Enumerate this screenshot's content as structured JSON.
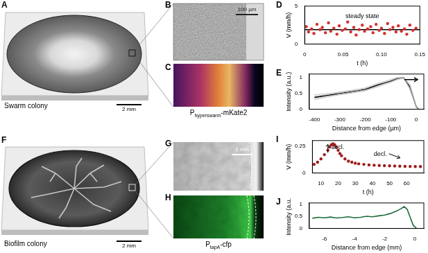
{
  "panels": [
    {
      "label": "A",
      "caption": "Swarm colony",
      "scale_bar": "2 mm"
    },
    {
      "label": "B",
      "scale_bar": "100 µm"
    },
    {
      "label": "C",
      "caption": {
        "base": "P",
        "sub": "hyperswarm",
        "suffix": "-mKate2"
      }
    },
    {
      "label": "F",
      "caption": "Biofilm colony",
      "scale_bar": "2 mm"
    },
    {
      "label": "G",
      "scale_bar": "1 mm"
    },
    {
      "label": "H",
      "caption": {
        "base": "P",
        "sub": "tapA",
        "suffix": "-cfp"
      }
    }
  ],
  "chart_data": [
    {
      "type": "scatter",
      "panel_label": "D",
      "x_label": "t (h)",
      "y_label": "V (mm/h)",
      "annotations": [
        "steady state"
      ],
      "x": [
        0.002,
        0.005,
        0.009,
        0.012,
        0.016,
        0.02,
        0.023,
        0.027,
        0.031,
        0.034,
        0.038,
        0.042,
        0.045,
        0.049,
        0.053,
        0.056,
        0.06,
        0.064,
        0.067,
        0.071,
        0.075,
        0.078,
        0.082,
        0.086,
        0.089,
        0.093,
        0.097,
        0.1,
        0.104,
        0.108,
        0.111,
        0.115,
        0.119,
        0.122,
        0.126,
        0.13,
        0.133,
        0.137,
        0.141,
        0.145
      ],
      "series": [
        {
          "color": "#d32f2f",
          "marker": "circle",
          "values": [
            2.3,
            1.6,
            2.0,
            1.4,
            2.6,
            1.9,
            2.2,
            1.5,
            2.8,
            1.7,
            2.1,
            1.3,
            2.4,
            1.8,
            2.0,
            2.9,
            1.6,
            2.2,
            1.2,
            1.9,
            2.5,
            1.7,
            2.0,
            2.3,
            1.5,
            2.6,
            1.8,
            2.1,
            1.4,
            2.7,
            1.9,
            2.2,
            1.6,
            2.4,
            1.7,
            2.0,
            1.3,
            2.5,
            1.8,
            2.1
          ]
        },
        {
          "type": "line",
          "color": "#000000",
          "line_style": "solid",
          "x": [
            0,
            0.15
          ],
          "values": [
            1.9,
            1.9
          ]
        }
      ],
      "xlim": [
        0,
        0.15
      ],
      "ylim": [
        0,
        5
      ],
      "xticks": [
        0,
        0.05,
        {
          "value": 0.1,
          "label": "0.10"
        },
        0.15
      ],
      "yticks": [
        0,
        5
      ],
      "grid": false
    },
    {
      "type": "line",
      "panel_label": "E",
      "x_label": "Distance from edge (µm)",
      "y_label": "Intensity (a.u.)",
      "x": [
        -400,
        -375,
        -350,
        -325,
        -300,
        -275,
        -250,
        -225,
        -200,
        -175,
        -150,
        -125,
        -100,
        -75,
        -50,
        -25,
        0,
        10
      ],
      "series": [
        {
          "color": "#b5b5b5",
          "values": [
            0.3,
            0.34,
            0.38,
            0.42,
            0.45,
            0.48,
            0.51,
            0.54,
            0.57,
            0.64,
            0.7,
            0.77,
            0.84,
            0.92,
            0.97,
            0.62,
            0.05,
            0.0
          ]
        },
        {
          "color": "#b5b5b5",
          "values": [
            0.45,
            0.47,
            0.49,
            0.51,
            0.54,
            0.57,
            0.6,
            0.63,
            0.67,
            0.74,
            0.81,
            0.87,
            0.93,
            0.99,
            1.0,
            0.78,
            0.12,
            0.0
          ]
        },
        {
          "color": "#b5b5b5",
          "values": [
            0.33,
            0.37,
            0.41,
            0.44,
            0.48,
            0.51,
            0.54,
            0.57,
            0.6,
            0.66,
            0.73,
            0.8,
            0.86,
            0.94,
            1.0,
            0.66,
            0.06,
            0.0
          ]
        },
        {
          "color": "#b5b5b5",
          "values": [
            0.41,
            0.43,
            0.46,
            0.49,
            0.52,
            0.55,
            0.58,
            0.61,
            0.65,
            0.72,
            0.79,
            0.84,
            0.9,
            0.97,
            0.98,
            0.74,
            0.1,
            0.0
          ]
        },
        {
          "color": "#000000",
          "values": [
            0.37,
            0.4,
            0.43,
            0.46,
            0.49,
            0.52,
            0.55,
            0.58,
            0.62,
            0.69,
            0.76,
            0.82,
            0.88,
            0.96,
            0.99,
            0.7,
            0.08,
            0.0
          ]
        }
      ],
      "xlim": [
        -420,
        30
      ],
      "ylim": [
        0,
        1.1
      ],
      "xticks": [
        -400,
        -300,
        -200,
        -100,
        0
      ],
      "yticks": [
        0,
        0.5,
        1
      ],
      "grid": false
    },
    {
      "type": "scatter",
      "panel_label": "I",
      "x_label": "t (h)",
      "y_label": "V (mm/h)",
      "annotations": [
        "accl.",
        "decl."
      ],
      "x": [
        6,
        8,
        10,
        12,
        14,
        15,
        16,
        17,
        18,
        19,
        20,
        21,
        22,
        24,
        26,
        28,
        30,
        32,
        35,
        38,
        41,
        44,
        47,
        50,
        53,
        56,
        59,
        62,
        65,
        68
      ],
      "series": [
        {
          "color": "#9e1c1c",
          "marker": "circle",
          "values": [
            0.08,
            0.1,
            0.13,
            0.17,
            0.21,
            0.24,
            0.26,
            0.27,
            0.26,
            0.24,
            0.21,
            0.18,
            0.16,
            0.13,
            0.11,
            0.1,
            0.09,
            0.085,
            0.08,
            0.075,
            0.072,
            0.07,
            0.068,
            0.066,
            0.065,
            0.063,
            0.062,
            0.061,
            0.06,
            0.06
          ]
        }
      ],
      "xlim": [
        5,
        70
      ],
      "ylim": [
        0,
        0.3
      ],
      "xticks": [
        10,
        20,
        30,
        40,
        50,
        60
      ],
      "yticks": [
        0,
        0.25
      ],
      "grid": false
    },
    {
      "type": "line",
      "panel_label": "J",
      "x_label": "Distance from edge (mm)",
      "y_label": "Intensity (a.u.)",
      "x": [
        -6.8,
        -6.4,
        -6,
        -5.6,
        -5.2,
        -4.8,
        -4.4,
        -4,
        -3.6,
        -3.2,
        -2.8,
        -2.4,
        -2,
        -1.6,
        -1.2,
        -0.9,
        -0.7,
        -0.5,
        -0.3,
        -0.1,
        0.1
      ],
      "series": [
        {
          "color": "#1b6b3a",
          "values": [
            0.42,
            0.46,
            0.44,
            0.47,
            0.43,
            0.45,
            0.48,
            0.44,
            0.46,
            0.5,
            0.48,
            0.52,
            0.55,
            0.62,
            0.72,
            0.82,
            0.9,
            0.78,
            0.45,
            0.12,
            0.02
          ]
        }
      ],
      "xlim": [
        -7,
        0.6
      ],
      "ylim": [
        0,
        1.05
      ],
      "xticks": [
        -6,
        -4,
        -2,
        0
      ],
      "yticks": [
        0,
        0.5,
        1
      ],
      "grid": false
    }
  ]
}
